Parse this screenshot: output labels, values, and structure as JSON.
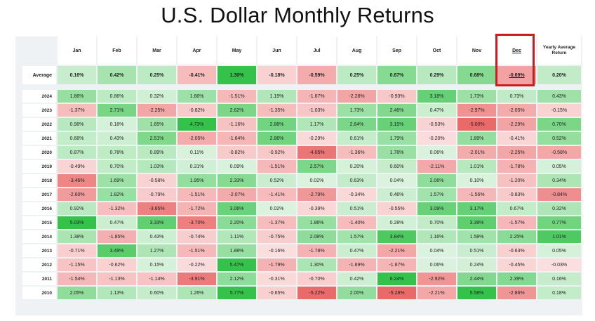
{
  "chart_data": {
    "type": "heatmap",
    "title": "U.S. Dollar Monthly Returns",
    "columns": [
      "Jan",
      "Feb",
      "Mar",
      "Apr",
      "May",
      "Jun",
      "Jul",
      "Aug",
      "Sep",
      "Oct",
      "Nov",
      "Dec",
      "Yearly Average Return"
    ],
    "average_label": "Average",
    "average": [
      "0.16%",
      "0.42%",
      "0.25%",
      "-0.41%",
      "1.30%",
      "-0.18%",
      "-0.59%",
      "0.25%",
      "0.67%",
      "0.29%",
      "0.68%",
      "-0.69%",
      "0.20%"
    ],
    "highlighted_column": "Dec",
    "rows": [
      {
        "year": "2024",
        "values": [
          "1.86%",
          "0.86%",
          "0.32%",
          "1.66%",
          "-1.51%",
          "1.19%",
          "-1.67%",
          "-2.28%",
          "-0.93%",
          "3.18%",
          "1.73%",
          "0.73%",
          "0.43%"
        ]
      },
      {
        "year": "2023",
        "values": [
          "-1.37%",
          "2.71%",
          "-2.25%",
          "-0.82%",
          "2.62%",
          "-1.35%",
          "-1.03%",
          "1.73%",
          "2.46%",
          "0.47%",
          "-2.97%",
          "-2.05%",
          "-0.15%"
        ]
      },
      {
        "year": "2022",
        "values": [
          "0.98%",
          "0.18%",
          "1.65%",
          "4.73%",
          "-1.16%",
          "2.88%",
          "1.17%",
          "2.64%",
          "3.15%",
          "-0.53%",
          "-5.00%",
          "-2.29%",
          "0.70%"
        ]
      },
      {
        "year": "2021",
        "values": [
          "0.68%",
          "0.43%",
          "2.51%",
          "-2.05%",
          "-1.64%",
          "2.86%",
          "-0.29%",
          "0.61%",
          "1.79%",
          "-0.20%",
          "1.89%",
          "-0.41%",
          "0.52%"
        ]
      },
      {
        "year": "2020",
        "values": [
          "0.87%",
          "0.78%",
          "0.89%",
          "0.11%",
          "-0.82%",
          "-0.92%",
          "-4.05%",
          "-1.36%",
          "1.78%",
          "0.06%",
          "-2.01%",
          "-2.25%",
          "-0.58%"
        ]
      },
      {
        "year": "2019",
        "values": [
          "-0.49%",
          "0.70%",
          "1.03%",
          "0.31%",
          "0.09%",
          "-1.51%",
          "2.57%",
          "0.20%",
          "0.60%",
          "-2.11%",
          "1.01%",
          "-1.78%",
          "0.05%"
        ]
      },
      {
        "year": "2018",
        "values": [
          "-3.46%",
          "1.69%",
          "-0.58%",
          "1.95%",
          "2.33%",
          "0.52%",
          "0.02%",
          "0.63%",
          "0.04%",
          "2.06%",
          "0.10%",
          "-1.20%",
          "0.34%"
        ]
      },
      {
        "year": "2017",
        "values": [
          "-2.60%",
          "1.82%",
          "-0.79%",
          "-1.51%",
          "-2.07%",
          "-1.41%",
          "-2.79%",
          "-0.34%",
          "0.46%",
          "1.57%",
          "-1.56%",
          "-0.83%",
          "-0.84%"
        ]
      },
      {
        "year": "2016",
        "values": [
          "0.92%",
          "-1.32%",
          "-3.65%",
          "-1.72%",
          "3.06%",
          "0.02%",
          "-0.39%",
          "0.51%",
          "-0.55%",
          "3.09%",
          "3.17%",
          "0.67%",
          "0.32%"
        ]
      },
      {
        "year": "2015",
        "values": [
          "5.03%",
          "0.47%",
          "3.33%",
          "-3.70%",
          "2.20%",
          "-1.37%",
          "1.86%",
          "-1.40%",
          "0.28%",
          "0.70%",
          "3.39%",
          "-1.57%",
          "0.77%"
        ]
      },
      {
        "year": "2014",
        "values": [
          "1.38%",
          "-1.85%",
          "0.43%",
          "-0.74%",
          "1.11%",
          "-0.75%",
          "2.08%",
          "1.57%",
          "3.84%",
          "1.16%",
          "1.58%",
          "2.25%",
          "1.01%"
        ]
      },
      {
        "year": "2013",
        "values": [
          "-0.71%",
          "3.49%",
          "1.27%",
          "-1.51%",
          "1.88%",
          "-0.16%",
          "-1.78%",
          "0.47%",
          "-2.21%",
          "0.04%",
          "0.51%",
          "-0.63%",
          "0.05%"
        ]
      },
      {
        "year": "2012",
        "values": [
          "-1.15%",
          "-0.62%",
          "0.15%",
          "-0.22%",
          "5.47%",
          "-1.79%",
          "1.30%",
          "-1.69%",
          "-1.67%",
          "0.06%",
          "0.24%",
          "-0.45%",
          "-0.03%"
        ]
      },
      {
        "year": "2011",
        "values": [
          "-1.54%",
          "-1.13%",
          "-1.14%",
          "-3.91%",
          "2.12%",
          "-0.31%",
          "-0.70%",
          "0.42%",
          "6.24%",
          "-2.92%",
          "2.44%",
          "2.39%",
          "0.16%"
        ]
      },
      {
        "year": "2010",
        "values": [
          "2.05%",
          "1.13%",
          "0.60%",
          "1.26%",
          "5.77%",
          "-0.65%",
          "-5.22%",
          "2.00%",
          "-5.28%",
          "-2.21%",
          "5.58%",
          "-2.86%",
          "0.18%"
        ]
      }
    ],
    "colors": {
      "positive_strong": "#35c24a",
      "positive_light": "#dcf3df",
      "negative_strong": "#ea6a6a",
      "negative_light": "#fbe1e1",
      "highlight_border": "#c81e1e"
    }
  }
}
